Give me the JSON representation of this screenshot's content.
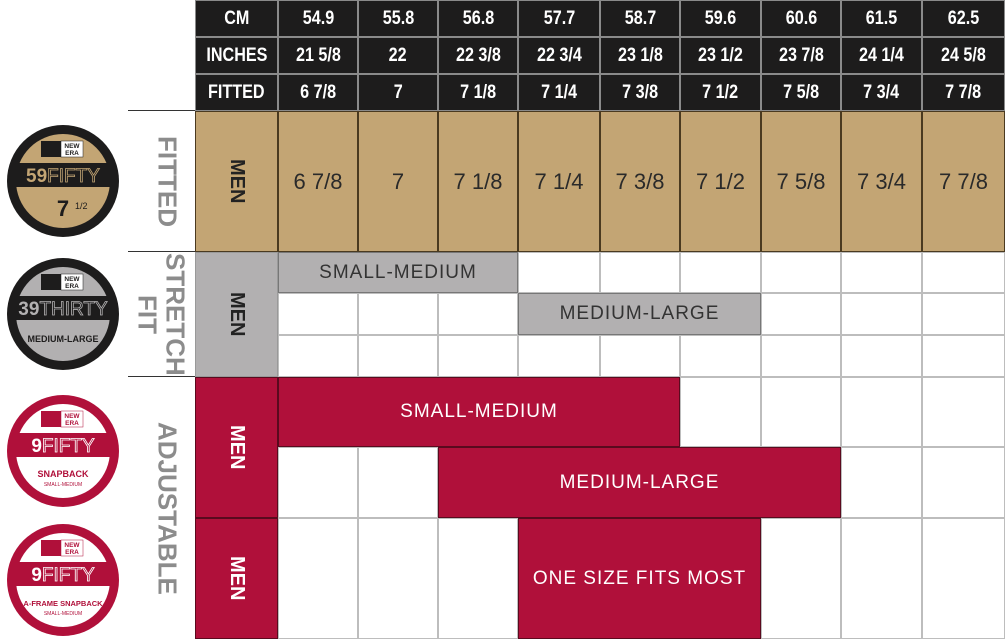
{
  "colors": {
    "header": "#1d1c1c",
    "fitted": "#c3a574",
    "stretch": "#b2b0b1",
    "adjustable": "#b0103a",
    "label_gray": "#8c8c8c"
  },
  "header": {
    "rows": [
      {
        "label": "CM",
        "values": [
          "54.9",
          "55.8",
          "56.8",
          "57.7",
          "58.7",
          "59.6",
          "60.6",
          "61.5",
          "62.5"
        ]
      },
      {
        "label": "INCHES",
        "values": [
          "21 5/8",
          "22",
          "22 3/8",
          "22 3/4",
          "23 1/8",
          "23 1/2",
          "23 7/8",
          "24 1/4",
          "24 5/8"
        ]
      },
      {
        "label": "FITTED",
        "values": [
          "6 7/8",
          "7",
          "7 1/8",
          "7 1/4",
          "7 3/8",
          "7 1/2",
          "7 5/8",
          "7 3/4",
          "7 7/8"
        ]
      }
    ]
  },
  "sections": {
    "fitted": {
      "title": "FITTED",
      "group": "MEN",
      "values": [
        "6 7/8",
        "7",
        "7 1/8",
        "7 1/4",
        "7 3/8",
        "7 1/2",
        "7 5/8",
        "7 3/4",
        "7 7/8"
      ]
    },
    "stretch": {
      "title_line1": "STRETCH",
      "title_line2": "FIT",
      "group": "MEN",
      "bars": [
        {
          "label": "SMALL-MEDIUM",
          "start_col": 1,
          "end_col": 4
        },
        {
          "label": "MEDIUM-LARGE",
          "start_col": 4,
          "end_col": 7
        }
      ]
    },
    "adjustable": {
      "title": "ADJUSTABLE",
      "group1": "MEN",
      "group2": "MEN",
      "bars": [
        {
          "label": "SMALL-MEDIUM",
          "start_col": 1,
          "end_col": 6
        },
        {
          "label": "MEDIUM-LARGE",
          "start_col": 3,
          "end_col": 8
        },
        {
          "label": "ONE SIZE FITS MOST",
          "start_col": 4,
          "end_col": 7
        }
      ]
    }
  },
  "badges": [
    {
      "brand": "NEW ERA",
      "model_num": "59",
      "model_word": "FIFTY",
      "sub": "7 1/2",
      "fill": "#c3a574"
    },
    {
      "brand": "NEW ERA",
      "model_num": "39",
      "model_word": "THIRTY",
      "sub": "MEDIUM-LARGE",
      "fill": "#b2b0b1"
    },
    {
      "brand": "NEW ERA",
      "model_num": "9",
      "model_word": "FIFTY",
      "sub": "SNAPBACK",
      "sub2": "SMALL-MEDIUM",
      "fill": "#ffffff"
    },
    {
      "brand": "NEW ERA",
      "model_num": "9",
      "model_word": "FIFTY",
      "sub": "A-FRAME SNAPBACK",
      "sub2": "SMALL-MEDIUM",
      "fill": "#ffffff"
    }
  ]
}
